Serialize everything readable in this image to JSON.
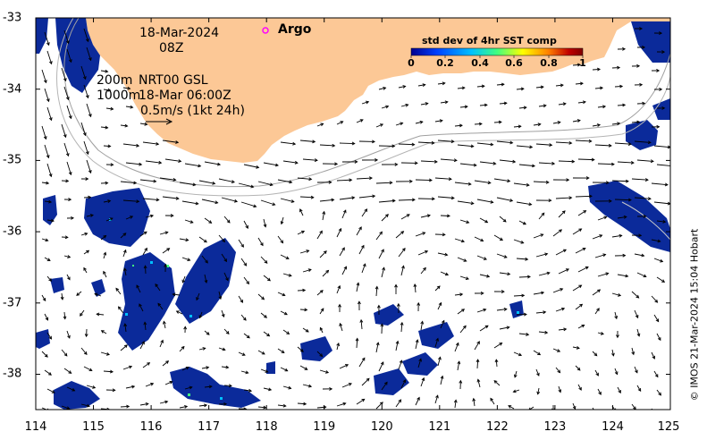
{
  "map": {
    "date": "18-Mar-2024",
    "time": "08Z",
    "depth_line_1": "200m",
    "depth_line_2": "1000m",
    "model_line_1": "NRT00 GSL",
    "model_line_2": "18-Mar 06:00Z",
    "scale_label": "0.5m/s (1kt 24h)",
    "argo_label": "Argo",
    "credit": "© IMOS 21-Mar-2024 15:04 Hobart",
    "land_color": "#fcc896",
    "ocean_color": "#ffffff",
    "data_color": "#0b2a9a",
    "argo_marker_color": "#ff00ff"
  },
  "colorbar": {
    "title": "std dev of 4hr SST comp",
    "ticks": [
      "0",
      "0.2",
      "0.4",
      "0.6",
      "0.8",
      "1"
    ],
    "colors": [
      "#00008f",
      "#0040ff",
      "#00c0ff",
      "#40ff80",
      "#ffff00",
      "#ff8000",
      "#c00000",
      "#800000"
    ]
  },
  "axes": {
    "x_ticks": [
      "114",
      "115",
      "116",
      "117",
      "118",
      "119",
      "120",
      "121",
      "122",
      "123",
      "124",
      "125"
    ],
    "y_ticks": [
      "-33",
      "-34",
      "-35",
      "-36",
      "-37",
      "-38"
    ]
  }
}
